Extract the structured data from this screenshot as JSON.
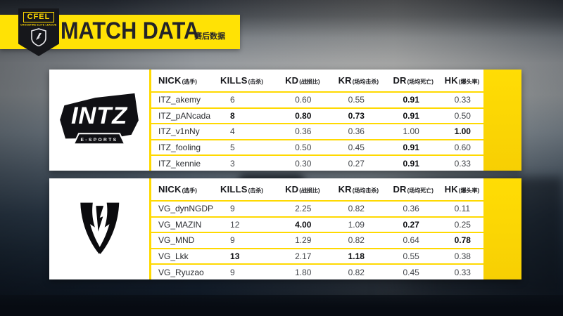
{
  "banner": {
    "title": "MATCH DATA",
    "subtitle": "赛后数据",
    "badge": {
      "name": "CFEL",
      "league": "CROSSFIRE ELITE LEAGUE"
    }
  },
  "columns": [
    {
      "key": "NICK",
      "cn": "(选手)"
    },
    {
      "key": "KILLS",
      "cn": "(击杀)"
    },
    {
      "key": "KD",
      "cn": "(战损比)"
    },
    {
      "key": "KR",
      "cn": "(场均击杀)"
    },
    {
      "key": "DR",
      "cn": "(场均死亡)"
    },
    {
      "key": "HK",
      "cn": "(爆头率)"
    }
  ],
  "colors": {
    "accent_yellow": "#ffdf00",
    "card_white": "#ffffff",
    "text_dark": "#1c1d21"
  },
  "teams": [
    {
      "name": "INTZ",
      "logo_text": "INTZ",
      "logo_sub": "E-SPORTS",
      "rows": [
        {
          "nick": "ITZ_akemy",
          "values": [
            "6",
            "0.60",
            "0.55",
            "0.91",
            "0.33"
          ],
          "bold": [
            false,
            false,
            false,
            true,
            false
          ]
        },
        {
          "nick": "ITZ_pANcada",
          "values": [
            "8",
            "0.80",
            "0.73",
            "0.91",
            "0.50"
          ],
          "bold": [
            true,
            true,
            true,
            true,
            false
          ]
        },
        {
          "nick": "ITZ_v1nNy",
          "values": [
            "4",
            "0.36",
            "0.36",
            "1.00",
            "1.00"
          ],
          "bold": [
            false,
            false,
            false,
            false,
            true
          ]
        },
        {
          "nick": "ITZ_fooling",
          "values": [
            "5",
            "0.50",
            "0.45",
            "0.91",
            "0.60"
          ],
          "bold": [
            false,
            false,
            false,
            true,
            false
          ]
        },
        {
          "nick": "ITZ_kennie",
          "values": [
            "3",
            "0.30",
            "0.27",
            "0.91",
            "0.33"
          ],
          "bold": [
            false,
            false,
            false,
            true,
            false
          ]
        }
      ]
    },
    {
      "name": "VG",
      "rows": [
        {
          "nick": "VG_dynNGDP",
          "values": [
            "9",
            "2.25",
            "0.82",
            "0.36",
            "0.11"
          ],
          "bold": [
            false,
            false,
            false,
            false,
            false
          ]
        },
        {
          "nick": "VG_MAZIN",
          "values": [
            "12",
            "4.00",
            "1.09",
            "0.27",
            "0.25"
          ],
          "bold": [
            false,
            true,
            false,
            true,
            false
          ]
        },
        {
          "nick": "VG_MND",
          "values": [
            "9",
            "1.29",
            "0.82",
            "0.64",
            "0.78"
          ],
          "bold": [
            false,
            false,
            false,
            false,
            true
          ]
        },
        {
          "nick": "VG_Lkk",
          "values": [
            "13",
            "2.17",
            "1.18",
            "0.55",
            "0.38"
          ],
          "bold": [
            true,
            false,
            true,
            false,
            false
          ]
        },
        {
          "nick": "VG_Ryuzao",
          "values": [
            "9",
            "1.80",
            "0.82",
            "0.45",
            "0.33"
          ],
          "bold": [
            false,
            false,
            false,
            false,
            false
          ]
        }
      ]
    }
  ]
}
